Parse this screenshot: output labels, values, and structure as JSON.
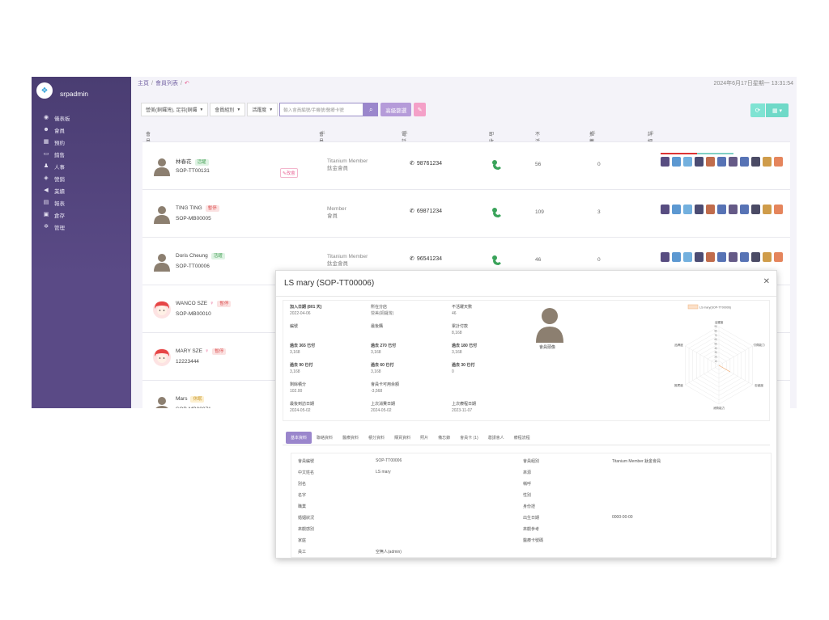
{
  "sidebar": {
    "brand": "srpadmin",
    "items": [
      {
        "icon": "dashboard-icon",
        "label": "儀表板"
      },
      {
        "icon": "users-icon",
        "label": "會員"
      },
      {
        "icon": "calendar-icon",
        "label": "預約"
      },
      {
        "icon": "sales-icon",
        "label": "銷售"
      },
      {
        "icon": "person-icon",
        "label": "人事"
      },
      {
        "icon": "marketing-icon",
        "label": "營銷"
      },
      {
        "icon": "megaphone-icon",
        "label": "業績"
      },
      {
        "icon": "chart-icon",
        "label": "報表"
      },
      {
        "icon": "inventory-icon",
        "label": "倉存"
      },
      {
        "icon": "gear-icon",
        "label": "管理"
      }
    ]
  },
  "header": {
    "breadcrumb": [
      "主頁",
      "會員列表"
    ],
    "datetime": "2024年6月17日星期一 13:31:54"
  },
  "toolbar": {
    "filter1": "營美(銅鑼灣), 足羽(銅鑼",
    "filter2": "會員組別",
    "filter3": "活躍度",
    "search_placeholder": "輸入會員編號/手機號/醫療卡號",
    "advanced": "高級篩選"
  },
  "table": {
    "headers": [
      "會員",
      "會員組別",
      "電話",
      "即收情況",
      "不活躍天數",
      "推薦入數量",
      "詳細資料"
    ],
    "rows": [
      {
        "name": "林春花",
        "tag": "活躍",
        "tag_color": "green",
        "code": "SOP-TT00131",
        "group1": "Titanium Member",
        "group2": "鈦金會員",
        "phone": "98761234",
        "days": "56",
        "refs": "0",
        "edit": "改會",
        "female": false
      },
      {
        "name": "TING TING",
        "tag": "暫停",
        "tag_color": "red",
        "code": "SOP-MB00005",
        "group1": "Member",
        "group2": "會員",
        "phone": "69871234",
        "days": "109",
        "refs": "3",
        "edit": "",
        "female": false
      },
      {
        "name": "Doris Cheung",
        "tag": "活躍",
        "tag_color": "green",
        "code": "SOP-TT00006",
        "group1": "Titanium Member",
        "group2": "鈦金會員",
        "phone": "96541234",
        "days": "46",
        "refs": "0",
        "edit": "",
        "female": false
      },
      {
        "name": "WANCO SZE",
        "tag": "暫停",
        "tag_color": "red",
        "code": "SOP-MB00010",
        "group1": "",
        "group2": "",
        "phone": "",
        "days": "",
        "refs": "",
        "edit": "",
        "female": true
      },
      {
        "name": "MARY SZE",
        "tag": "暫停",
        "tag_color": "red",
        "code": "12223444",
        "group1": "",
        "group2": "",
        "phone": "",
        "days": "",
        "refs": "",
        "edit": "",
        "female": true
      },
      {
        "name": "Mars",
        "tag": "休眠",
        "tag_color": "yellow",
        "code": "SOP-MB00071",
        "group1": "",
        "group2": "",
        "phone": "",
        "days": "",
        "refs": "",
        "edit": "",
        "female": false
      }
    ]
  },
  "modal": {
    "title": "LS mary (SOP-TT00006)",
    "fields": {
      "join_date_label": "加入日期 (801 天)",
      "join_date": "2022-04-06",
      "branch_label": "所在分店",
      "branch": "營美(銅鑼灣)",
      "inactive_label": "不活躍天數",
      "inactive": "46",
      "card_label": "編號",
      "balance_label": "最後購",
      "total_label": "累計付款",
      "total": "8,168",
      "p365_label": "過去 365 已付",
      "p365": "3,168",
      "p270_label": "過去 270 已付",
      "p270": "3,168",
      "p180_label": "過去 180 已付",
      "p180": "3,168",
      "p90_label": "過去 90 已付",
      "p90": "3,168",
      "p60_label": "過去 60 已付",
      "p60": "3,168",
      "p30_label": "過去 30 已付",
      "p30": "0",
      "points_label": "剩餘積分",
      "points": "102.00",
      "prepaid_label": "會員卡可用余額",
      "prepaid": "-3,568",
      "last_visit_label": "最後到訪日期",
      "last_visit": "2024-05-02",
      "last_spend_label": "上次消費日期",
      "last_spend": "2024-05-02",
      "last_other_label": "上次療程日期",
      "last_other": "2023-11-07",
      "avatar_label": "會員頭像"
    },
    "radar": {
      "legend": "LS mary(SOP-TT00006)",
      "axes": [
        "活躍度",
        "付費能力",
        "忠誠度",
        "消費能力",
        "推薦度",
        "品牌度"
      ],
      "ticks": [
        "90",
        "80",
        "70",
        "60",
        "50",
        "40",
        "30",
        "20",
        "10"
      ],
      "values": [
        0,
        0,
        30,
        0,
        0,
        0
      ]
    },
    "tabs": [
      "基本資料",
      "聯絡資料",
      "醫療資料",
      "積分資料",
      "購買資料",
      "照片",
      "備忘錄",
      "會員卡 (1)",
      "邀請會人",
      "療程流程"
    ],
    "details": [
      {
        "l1": "會員編號",
        "v1": "SOP-TT00006",
        "l2": "會員組別",
        "v2": "Titanium Member 鈦金會員"
      },
      {
        "l1": "中文姓名",
        "v1": "LS mary",
        "l2": "來源",
        "v2": ""
      },
      {
        "l1": "別名",
        "v1": "",
        "l2": "稱呼",
        "v2": ""
      },
      {
        "l1": "名字",
        "v1": "",
        "l2": "性別",
        "v2": ""
      },
      {
        "l1": "職業",
        "v1": "",
        "l2": "身份證",
        "v2": ""
      },
      {
        "l1": "婚姻狀況",
        "v1": "",
        "l2": "出生日期",
        "v2": "0000-00-00"
      },
      {
        "l1": "來觀感別",
        "v1": "",
        "l2": "來觀參考",
        "v2": ""
      },
      {
        "l1": "家庭",
        "v1": "",
        "l2": "醫療卡號碼",
        "v2": ""
      },
      {
        "l1": "員工",
        "v1": "空無人(admin)",
        "l2": "",
        "v2": ""
      }
    ]
  },
  "colors": {
    "sidebar": "#4a3d72",
    "accent": "#9a86cc",
    "pink": "#e75c90",
    "teal": "#6fd9c8"
  }
}
